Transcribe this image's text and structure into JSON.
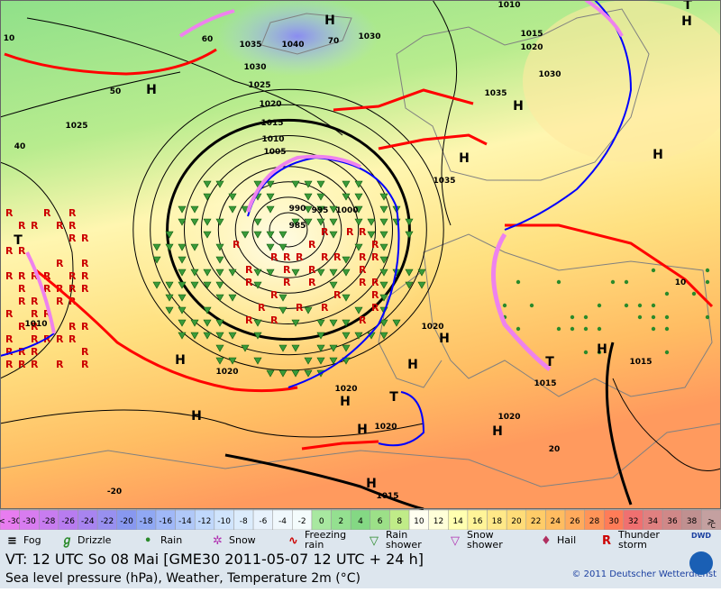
{
  "map": {
    "labels": [
      "1035",
      "1040",
      "1030",
      "1030",
      "1025",
      "1020",
      "1015",
      "1010",
      "1005",
      "990",
      "995",
      "1000",
      "985",
      "1025",
      "1010",
      "1020",
      "1020",
      "1020",
      "1020",
      "1020",
      "1015",
      "1015",
      "1015",
      "1030",
      "1020",
      "1015",
      "1010",
      "1035",
      "1035",
      "60",
      "50",
      "40",
      "70",
      "10",
      "20",
      "-20",
      "10"
    ],
    "pressure_centers": [
      "H",
      "H",
      "H",
      "H",
      "H",
      "H",
      "H",
      "H",
      "H",
      "H",
      "H",
      "H",
      "H",
      "H",
      "H",
      "T",
      "T",
      "T",
      "T"
    ]
  },
  "scale": {
    "labels": [
      "< -30",
      "-30",
      "-28",
      "-26",
      "-24",
      "-22",
      "-20",
      "-18",
      "-16",
      "-14",
      "-12",
      "-10",
      "-8",
      "-6",
      "-4",
      "-2",
      "0",
      "2",
      "4",
      "6",
      "8",
      "10",
      "12",
      "14",
      "16",
      "18",
      "20",
      "22",
      "24",
      "26",
      "28",
      "30",
      "32",
      "34",
      "36",
      "38",
      ">"
    ],
    "colors": [
      "#e87cf0",
      "#d87cf0",
      "#c87cf0",
      "#b87cf0",
      "#a884f0",
      "#9890f0",
      "#8898f0",
      "#90a8f4",
      "#a0b8f8",
      "#b0c8f8",
      "#c0d8fc",
      "#d0e4fc",
      "#dcecfc",
      "#e8f2fc",
      "#f0f8fc",
      "#f4fcfc",
      "#a8e8a0",
      "#94e090",
      "#84d884",
      "#9ce088",
      "#c0ec88",
      "#fffff0",
      "#ffffd8",
      "#ffffb0",
      "#fff498",
      "#ffe888",
      "#ffdc78",
      "#ffcc68",
      "#ffbc60",
      "#ffaa5c",
      "#ff9458",
      "#ff7c58",
      "#f07070",
      "#e08080",
      "#d08888",
      "#c09090",
      "#c4a0a0"
    ],
    "unit": "°C"
  },
  "legend": [
    "Fog",
    "Drizzle",
    "Rain",
    "Snow",
    "Freezing\nrain",
    "Rain\nshower",
    "Snow\nshower",
    "Hail",
    "Thunder\nstorm"
  ],
  "footer": {
    "valid_time": "VT: 12 UTC So  08 Mai [GME30 2011-05-07  12 UTC + 24 h]",
    "description": "Sea level pressure (hPa), Weather, Temperature 2m (°C)",
    "copyright": "© 2011 Deutscher Wetterdienst",
    "logo": "DWD"
  }
}
